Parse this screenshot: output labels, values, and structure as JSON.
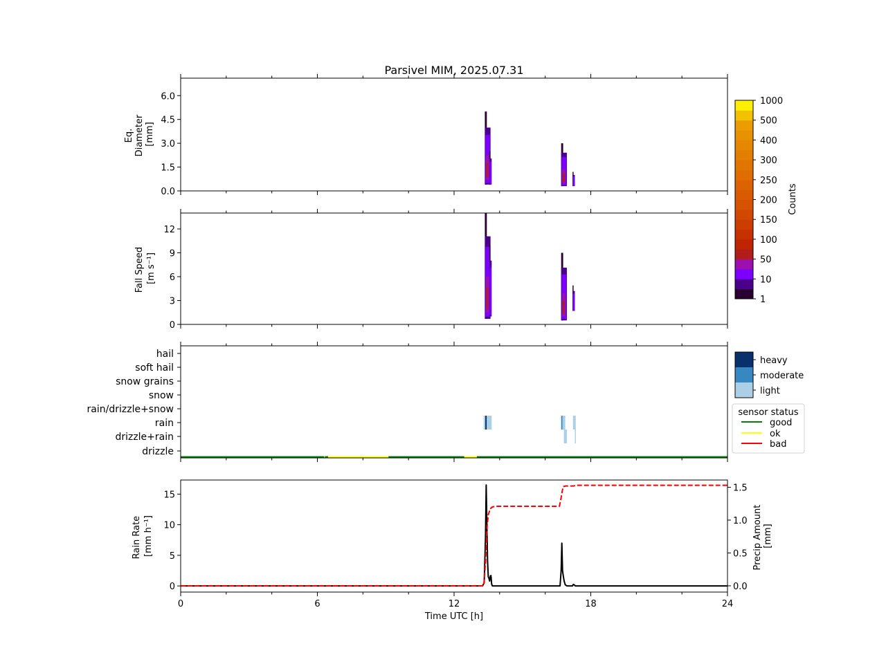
{
  "chart_data": [
    {
      "type": "heatmap",
      "panel": "diameter",
      "title": "Parsivel MIM, 2025.07.31",
      "ylabel_lines": [
        "Eq.",
        "Diameter",
        "[mm]"
      ],
      "xlim": [
        0,
        24
      ],
      "ylim": [
        0,
        7.1
      ],
      "yticks": [
        0.0,
        1.5,
        3.0,
        4.5,
        6.0
      ],
      "ytick_labels": [
        "0.0",
        "1.5",
        "3.0",
        "4.5",
        "6.0"
      ],
      "events": [
        {
          "t_start": 13.35,
          "t_end": 13.6,
          "y_min": 0.4,
          "y_max": 5.0,
          "peak_level": "50-100"
        },
        {
          "t_start": 13.55,
          "t_end": 13.65,
          "y_min": 0.4,
          "y_max": 2.5,
          "peak_level": "10-50"
        },
        {
          "t_start": 16.7,
          "t_end": 16.95,
          "y_min": 0.3,
          "y_max": 3.0,
          "peak_level": "50-100"
        },
        {
          "t_start": 17.2,
          "t_end": 17.3,
          "y_min": 0.3,
          "y_max": 1.2,
          "peak_level": "10-50"
        }
      ]
    },
    {
      "type": "heatmap",
      "panel": "fall_speed",
      "ylabel_lines": [
        "Fall Speed",
        "[m s⁻¹]"
      ],
      "xlim": [
        0,
        24
      ],
      "ylim": [
        0,
        14
      ],
      "yticks": [
        0,
        3,
        6,
        9,
        12
      ],
      "ytick_labels": [
        "0",
        "3",
        "6",
        "9",
        "12"
      ],
      "events": [
        {
          "t_start": 13.35,
          "t_end": 13.6,
          "y_min": 0.7,
          "y_max": 14.0,
          "peak_level": "50-100"
        },
        {
          "t_start": 13.55,
          "t_end": 13.65,
          "y_min": 1.0,
          "y_max": 10.0,
          "peak_level": "10-50"
        },
        {
          "t_start": 16.7,
          "t_end": 16.95,
          "y_min": 0.5,
          "y_max": 9.0,
          "peak_level": "50-100"
        },
        {
          "t_start": 17.2,
          "t_end": 17.3,
          "y_min": 1.7,
          "y_max": 4.9,
          "peak_level": "10-50"
        }
      ]
    },
    {
      "type": "table",
      "panel": "precip_type",
      "categories": [
        "hail",
        "soft hail",
        "snow grains",
        "snow",
        "rain/drizzle+snow",
        "rain",
        "drizzle+rain",
        "drizzle"
      ],
      "xlim": [
        0,
        24
      ],
      "blocks": [
        {
          "category": "rain",
          "t_start": 13.3,
          "t_end": 13.65,
          "intensity": "light"
        },
        {
          "category": "rain",
          "t_start": 13.37,
          "t_end": 13.43,
          "intensity": "heavy"
        },
        {
          "category": "rain",
          "t_start": 16.7,
          "t_end": 16.76,
          "intensity": "moderate"
        },
        {
          "category": "rain",
          "t_start": 16.76,
          "t_end": 16.88,
          "intensity": "light"
        },
        {
          "category": "rain",
          "t_start": 17.22,
          "t_end": 17.34,
          "intensity": "light"
        },
        {
          "category": "drizzle+rain",
          "t_start": 16.82,
          "t_end": 16.95,
          "intensity": "light"
        },
        {
          "category": "drizzle+rain",
          "t_start": 17.3,
          "t_end": 17.34,
          "intensity": "light"
        }
      ],
      "sensor_status_segments": [
        {
          "t_start": 0.0,
          "t_end": 6.3,
          "status": "good"
        },
        {
          "t_start": 6.3,
          "t_end": 6.33,
          "status": "ok"
        },
        {
          "t_start": 6.33,
          "t_end": 6.47,
          "status": "good"
        },
        {
          "t_start": 6.47,
          "t_end": 9.12,
          "status": "ok"
        },
        {
          "t_start": 9.12,
          "t_end": 12.45,
          "status": "good"
        },
        {
          "t_start": 12.45,
          "t_end": 13.0,
          "status": "ok"
        },
        {
          "t_start": 13.0,
          "t_end": 24.0,
          "status": "good"
        }
      ]
    },
    {
      "type": "line",
      "panel": "rain_rate",
      "ylabel_lines": [
        "Rain Rate",
        "[mm h⁻¹]"
      ],
      "y2label_lines": [
        "Precip Amount",
        "[mm]"
      ],
      "xlabel": "Time UTC [h]",
      "xlim": [
        0,
        24
      ],
      "xticks": [
        0,
        6,
        12,
        18,
        24
      ],
      "xtick_labels": [
        "0",
        "6",
        "12",
        "18",
        "24"
      ],
      "ylim": [
        -1,
        17.3
      ],
      "yticks": [
        0,
        5,
        10,
        15
      ],
      "ytick_labels": [
        "0",
        "5",
        "10",
        "15"
      ],
      "y2lim": [
        -0.095,
        1.61
      ],
      "y2ticks": [
        0.0,
        0.5,
        1.0,
        1.5
      ],
      "y2tick_labels": [
        "0.0",
        "0.5",
        "1.0",
        "1.5"
      ],
      "series": [
        {
          "name": "Rain Rate",
          "axis": "left",
          "color": "#000000",
          "style": "solid",
          "x": [
            0,
            13.25,
            13.32,
            13.38,
            13.41,
            13.44,
            13.47,
            13.5,
            13.53,
            13.56,
            13.59,
            13.62,
            13.65,
            13.68,
            13.75,
            16.65,
            16.7,
            16.73,
            16.76,
            16.79,
            16.83,
            16.88,
            16.95,
            17.2,
            17.23,
            17.27,
            17.32,
            24
          ],
          "y": [
            0,
            0,
            0.5,
            8,
            16.5,
            10,
            4,
            1.5,
            1.2,
            0.8,
            1.6,
            1.7,
            0.3,
            0,
            0,
            0,
            2.5,
            7.0,
            2.5,
            1.7,
            0.8,
            0.2,
            0,
            0,
            0.25,
            0.2,
            0,
            0
          ]
        },
        {
          "name": "Precip Amount",
          "axis": "right",
          "color": "#ff0000",
          "style": "dashed",
          "x": [
            0,
            13.3,
            13.38,
            13.45,
            13.5,
            13.58,
            13.68,
            13.8,
            16.62,
            16.68,
            16.75,
            16.8,
            16.9,
            17.25,
            17.35,
            24
          ],
          "y": [
            0,
            0,
            0.35,
            0.9,
            1.08,
            1.17,
            1.2,
            1.21,
            1.21,
            1.3,
            1.45,
            1.51,
            1.52,
            1.52,
            1.53,
            1.53
          ]
        }
      ]
    }
  ],
  "colorbar": {
    "label": "Counts",
    "tick_labels": [
      "1",
      "10",
      "50",
      "100",
      "150",
      "200",
      "250",
      "300",
      "400",
      "500",
      "1000"
    ],
    "colors": [
      "#2a0030",
      "#4a008a",
      "#7b00ff",
      "#9c10b0",
      "#b21d1c",
      "#be2500",
      "#c63100",
      "#cc3e00",
      "#d24800",
      "#d65200",
      "#da5a00",
      "#dc6300",
      "#df6d00",
      "#e07500",
      "#e27e00",
      "#e58700",
      "#e79200",
      "#eb9c00",
      "#f2c200",
      "#fff000"
    ]
  },
  "intensity_legend": {
    "labels": [
      "heavy",
      "moderate",
      "light"
    ],
    "colors": [
      "#08306b",
      "#3787c0",
      "#abd0e6"
    ]
  },
  "sensor_legend": {
    "title": "sensor status",
    "items": [
      {
        "label": "good",
        "color": "#008000"
      },
      {
        "label": "ok",
        "color": "#ffff00"
      },
      {
        "label": "bad",
        "color": "#ff0000"
      }
    ]
  }
}
